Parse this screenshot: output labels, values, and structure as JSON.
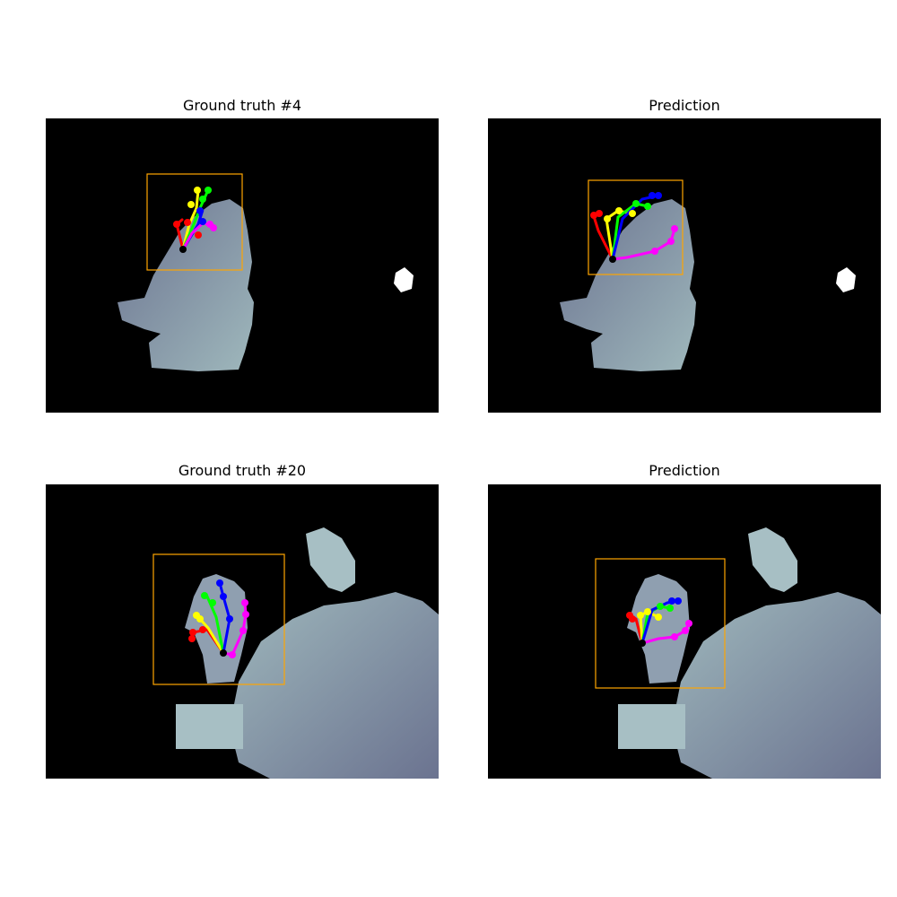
{
  "panels": [
    {
      "id": "gt4",
      "title": "Ground truth #4"
    },
    {
      "id": "pred4",
      "title": "Prediction"
    },
    {
      "id": "gt20",
      "title": "Ground truth #20"
    },
    {
      "id": "pred20",
      "title": "Prediction"
    }
  ],
  "colors": {
    "background": "#000000",
    "bbox": "#ffa500",
    "wrist": "#000000",
    "thumb": "#ff0000",
    "index": "#ffff00",
    "middle": "#00ff00",
    "ring": "#0000ff",
    "pinky": "#ff00ff",
    "depth_near": "#6b7390",
    "depth_far": "#a8c4c4"
  }
}
